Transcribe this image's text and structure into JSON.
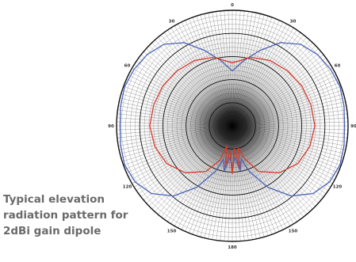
{
  "caption": {
    "line1": "Typical elevation",
    "line2": "radiation pattern for",
    "line3": "2dBi gain dipole"
  },
  "chart_data": {
    "type": "polar",
    "title": "Typical elevation radiation pattern for 2dBi gain dipole",
    "angle_ticks": [
      "0",
      "30",
      "60",
      "90",
      "120",
      "150",
      "180",
      "150",
      "120",
      "90",
      "60",
      "30"
    ],
    "rings": 5,
    "grid": true,
    "colors": {
      "blue": "#4a63b8",
      "red": "#d8392c",
      "grid": "#1e1e1e"
    },
    "series": [
      {
        "name": "",
        "color": "#4a63b8",
        "angles_deg": [
          0,
          10,
          20,
          30,
          40,
          50,
          60,
          70,
          80,
          90,
          100,
          110,
          120,
          130,
          140,
          150,
          160,
          165,
          170,
          175,
          180,
          185,
          190,
          195,
          200,
          210,
          220,
          230,
          240,
          250,
          260,
          270,
          280,
          290,
          300,
          310,
          320,
          330,
          340,
          350
        ],
        "r": [
          0.48,
          0.58,
          0.7,
          0.84,
          0.93,
          0.97,
          0.99,
          1.0,
          0.99,
          0.98,
          0.99,
          1.0,
          0.98,
          0.92,
          0.8,
          0.62,
          0.42,
          0.3,
          0.4,
          0.28,
          0.35,
          0.28,
          0.4,
          0.3,
          0.42,
          0.62,
          0.8,
          0.92,
          0.98,
          1.0,
          0.99,
          0.98,
          0.99,
          1.0,
          0.99,
          0.97,
          0.93,
          0.84,
          0.7,
          0.58
        ]
      },
      {
        "name": "",
        "color": "#d8392c",
        "angles_deg": [
          0,
          15,
          30,
          45,
          60,
          75,
          90,
          105,
          120,
          135,
          150,
          160,
          165,
          170,
          175,
          180,
          185,
          190,
          195,
          200,
          210,
          225,
          240,
          255,
          270,
          285,
          300,
          315,
          330,
          345
        ],
        "r": [
          0.55,
          0.62,
          0.66,
          0.68,
          0.7,
          0.71,
          0.72,
          0.7,
          0.66,
          0.58,
          0.46,
          0.3,
          0.2,
          0.38,
          0.2,
          0.42,
          0.22,
          0.36,
          0.18,
          0.32,
          0.46,
          0.58,
          0.66,
          0.7,
          0.72,
          0.71,
          0.7,
          0.68,
          0.66,
          0.62
        ]
      }
    ]
  }
}
